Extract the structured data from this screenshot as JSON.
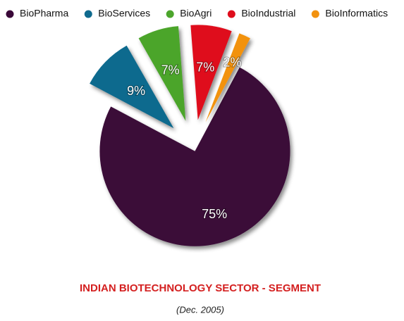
{
  "chart_data": {
    "type": "pie",
    "title": "INDIAN BIOTECHNOLOGY SECTOR - SEGMENT",
    "subtitle": "(Dec. 2005)",
    "categories": [
      "BioPharma",
      "BioServices",
      "BioAgri",
      "BioIndustrial",
      "BioInformatics"
    ],
    "values": [
      75,
      9,
      7,
      7,
      2
    ],
    "value_labels": [
      "75%",
      "9%",
      "7%",
      "7%",
      "2%"
    ],
    "colors": [
      "#3a0838",
      "#0f6a8e",
      "#4ca52c",
      "#df0d1c",
      "#f2920f"
    ],
    "legend": "top"
  }
}
